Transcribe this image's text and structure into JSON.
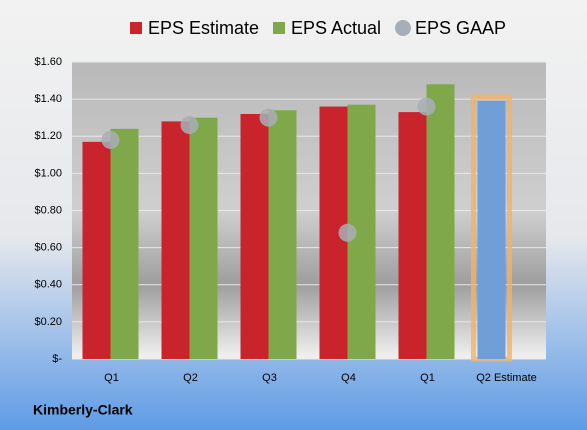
{
  "chart_data": {
    "type": "bar",
    "footnote": "Kimberly-Clark",
    "categories": [
      "Q1",
      "Q2",
      "Q3",
      "Q4",
      "Q1",
      "Q2 Estimate"
    ],
    "series": [
      {
        "name": "EPS Estimate",
        "color": "#c9242c",
        "colors": [
          "#c9242c",
          "#c9242c",
          "#c9242c",
          "#c9242c",
          "#c9242c",
          "#6f9fd6"
        ],
        "values": [
          1.17,
          1.28,
          1.32,
          1.36,
          1.33,
          1.39
        ]
      },
      {
        "name": "EPS Actual",
        "color": "#7fa84a",
        "values": [
          1.24,
          1.3,
          1.34,
          1.37,
          1.48,
          null
        ]
      },
      {
        "name": "EPS GAAP",
        "color": "#a8aeb6",
        "marker": "circle",
        "values": [
          1.18,
          1.26,
          1.3,
          0.68,
          1.36,
          null
        ]
      }
    ],
    "ylim": [
      0,
      1.6
    ],
    "yticks": [
      {
        "value": 0,
        "label": "$-"
      },
      {
        "value": 0.2,
        "label": "$0.20"
      },
      {
        "value": 0.4,
        "label": "$0.40"
      },
      {
        "value": 0.6,
        "label": "$0.60"
      },
      {
        "value": 0.8,
        "label": "$0.80"
      },
      {
        "value": 1.0,
        "label": "$1.00"
      },
      {
        "value": 1.2,
        "label": "$1.20"
      },
      {
        "value": 1.4,
        "label": "$1.40"
      },
      {
        "value": 1.6,
        "label": "$1.60"
      }
    ],
    "grid": true,
    "legend": "top"
  }
}
